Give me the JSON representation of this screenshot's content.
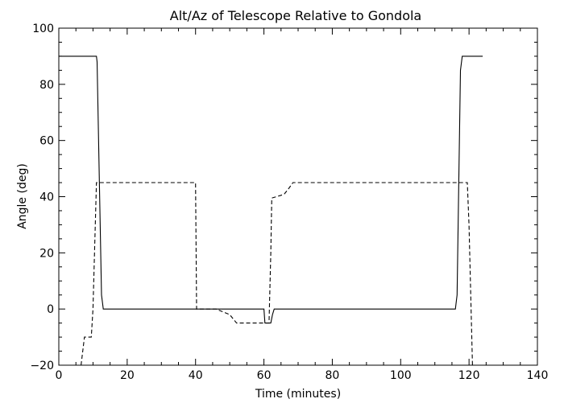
{
  "chart_data": {
    "type": "line",
    "title": "Alt/Az of Telescope Relative to Gondola",
    "xlabel": "Time (minutes)",
    "ylabel": "Angle (deg)",
    "xlim": [
      0,
      140
    ],
    "ylim": [
      -20,
      100
    ],
    "x_ticks": [
      "0",
      "20",
      "40",
      "60",
      "80",
      "100",
      "120",
      "140"
    ],
    "y_ticks": [
      "−20",
      "0",
      "20",
      "40",
      "60",
      "80",
      "100"
    ],
    "grid": false,
    "legend": "none",
    "series": [
      {
        "line_style": "solid",
        "x": [
          0,
          11,
          11.2,
          12.5,
          13,
          20,
          40,
          50,
          60,
          60.3,
          62,
          62.5,
          63,
          80,
          100,
          116,
          116.5,
          117.5,
          118,
          124
        ],
        "y": [
          90,
          90,
          88,
          5,
          0,
          0,
          0,
          0,
          0,
          -5,
          -5,
          -2,
          0,
          0,
          0,
          0,
          5,
          85,
          90,
          90
        ]
      },
      {
        "line_style": "dashed",
        "x": [
          6.5,
          7.5,
          9.5,
          10,
          11,
          13,
          40,
          40.3,
          46,
          50,
          52,
          60,
          61.5,
          62,
          62.3,
          65,
          66,
          67,
          68.5,
          80,
          100,
          119.5,
          120,
          121
        ],
        "y": [
          -20,
          -10,
          -10,
          0,
          45,
          45,
          45,
          0,
          0,
          -2,
          -5,
          -5,
          -5,
          20,
          39.5,
          40.5,
          41,
          42.5,
          45,
          45,
          45,
          45,
          30,
          -20
        ]
      }
    ]
  }
}
